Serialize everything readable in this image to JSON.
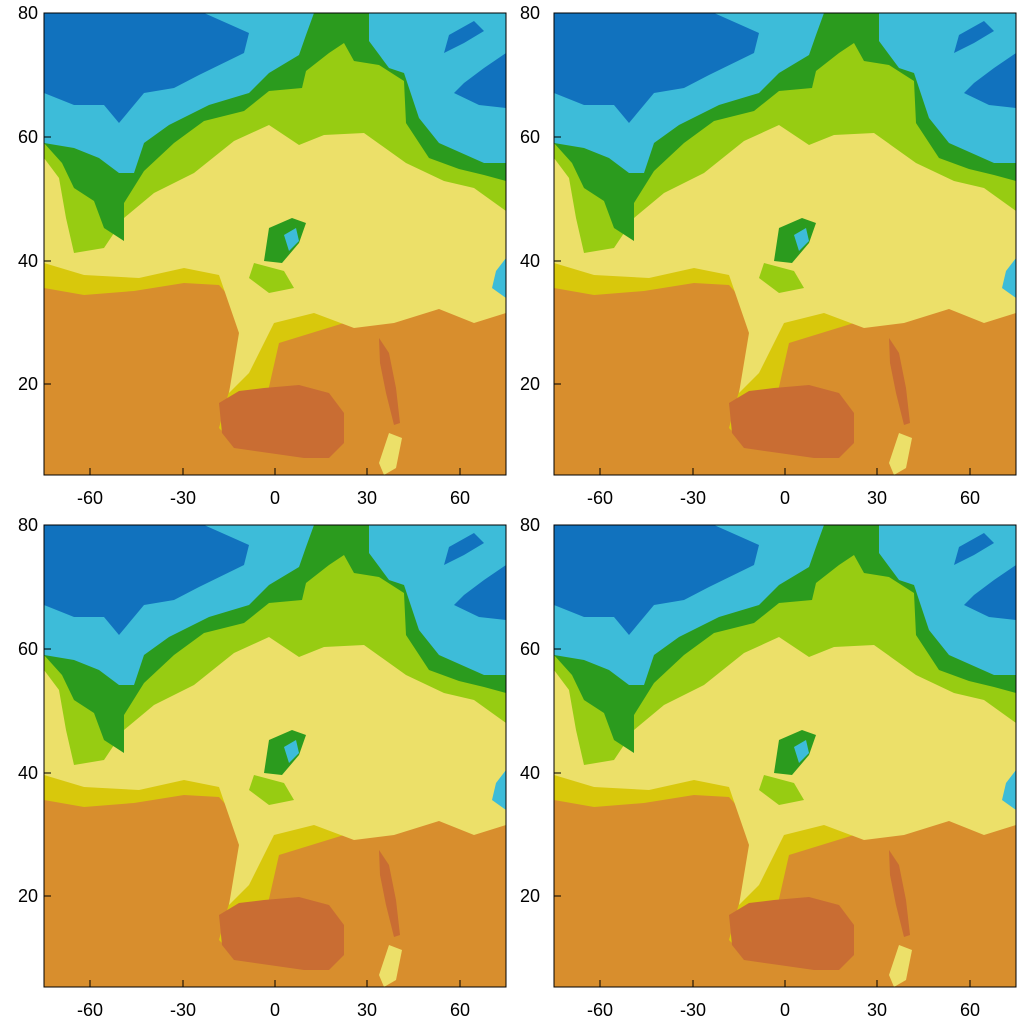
{
  "figure": {
    "panel_count": 4,
    "layout": "2x2 grid",
    "description_colors": {
      "deep_blue": "#1172be",
      "light_blue": "#3dbcd9",
      "dark_green": "#2b9b1e",
      "light_green": "#97cc12",
      "pale_yellow": "#ece069",
      "mustard": "#d8c80c",
      "orange": "#d88e2d",
      "burnt_orange": "#c96d33"
    }
  },
  "chart_data": [
    {
      "type": "heatmap",
      "panel": "top-left",
      "xlim": [
        -75,
        75
      ],
      "ylim": [
        5,
        80
      ],
      "x_ticks": [
        "-60",
        "-30",
        "0",
        "30",
        "60"
      ],
      "y_ticks": [
        "20",
        "40",
        "60",
        "80"
      ],
      "title": "",
      "xlabel": "",
      "ylabel": ""
    },
    {
      "type": "heatmap",
      "panel": "top-right",
      "xlim": [
        -75,
        75
      ],
      "ylim": [
        5,
        80
      ],
      "x_ticks": [
        "-60",
        "-30",
        "0",
        "30",
        "60"
      ],
      "y_ticks": [
        "20",
        "40",
        "60",
        "80"
      ],
      "title": "",
      "xlabel": "",
      "ylabel": ""
    },
    {
      "type": "heatmap",
      "panel": "bottom-left",
      "xlim": [
        -75,
        75
      ],
      "ylim": [
        5,
        80
      ],
      "x_ticks": [
        "-60",
        "-30",
        "0",
        "30",
        "60"
      ],
      "y_ticks": [
        "20",
        "40",
        "60",
        "80"
      ],
      "title": "",
      "xlabel": "",
      "ylabel": ""
    },
    {
      "type": "heatmap",
      "panel": "bottom-right",
      "xlim": [
        -75,
        75
      ],
      "ylim": [
        5,
        80
      ],
      "x_ticks": [
        "-60",
        "-30",
        "0",
        "30",
        "60"
      ],
      "y_ticks": [
        "20",
        "40",
        "60",
        "80"
      ],
      "title": "",
      "xlabel": "",
      "ylabel": ""
    }
  ]
}
